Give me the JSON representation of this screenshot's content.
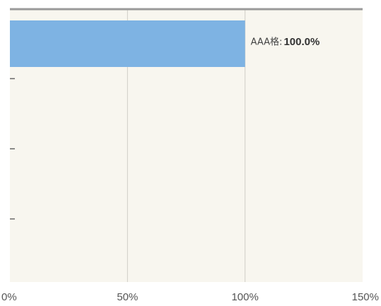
{
  "chart_data": {
    "type": "bar",
    "orientation": "horizontal",
    "categories": [
      "AAA格",
      "",
      "",
      ""
    ],
    "values": [
      100.0,
      null,
      null,
      null
    ],
    "xlim": [
      0,
      150
    ],
    "x_ticks": [
      0,
      50,
      100,
      150
    ],
    "x_tick_labels": [
      "0%",
      "50%",
      "100%",
      "150%"
    ],
    "data_labels": [
      {
        "category": "AAA格",
        "separator": ":",
        "value_text": "100.0%"
      }
    ],
    "grid": "vertical",
    "legend": "none"
  },
  "colors": {
    "plot_background": "#f8f6ef",
    "bar": "#7eb3e3",
    "gridline": "#cfcdc6",
    "axis_top": "#9a9a9a",
    "tick_mark": "#666666"
  }
}
